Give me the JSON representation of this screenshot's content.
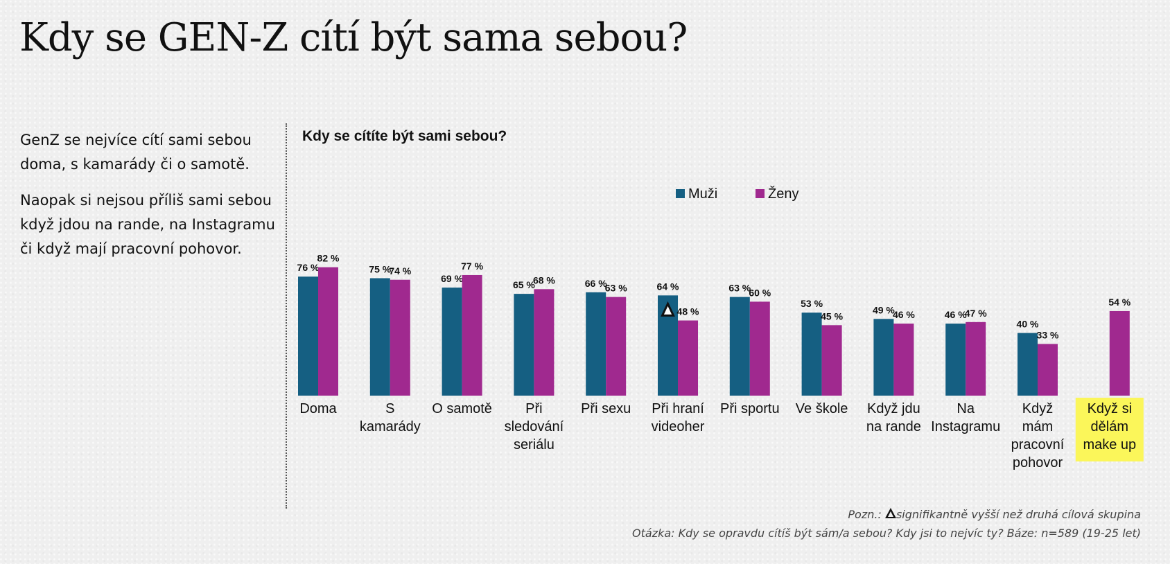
{
  "title": "Kdy se GEN-Z cítí být sama sebou?",
  "left_text": {
    "p1": "GenZ se nejvíce cítí sami sebou doma, s kamarády či o samotě.",
    "p2": "Naopak si nejsou příliš sami sebou když jdou na rande, na Instagramu či když mají pracovní pohovor."
  },
  "notes": {
    "pozn_prefix": "Pozn.:",
    "pozn_text": "signifikantně vyšší než druhá cílová skupina",
    "question": "Otázka: Kdy se opravdu cítíš být sám/a sebou? Kdy jsi to nejvíc ty? Báze: n=589 (19-25 let)"
  },
  "chart_data": {
    "type": "bar",
    "title": "Kdy se cítíte být sami sebou?",
    "legend_position": "top",
    "grid": false,
    "ylim": [
      0,
      100
    ],
    "categories": [
      [
        "Doma"
      ],
      [
        "S",
        "kamarády"
      ],
      [
        "O samotě"
      ],
      [
        "Při",
        "sledování",
        "seriálu"
      ],
      [
        "Při sexu"
      ],
      [
        "Při hraní",
        "videoher"
      ],
      [
        "Při sportu"
      ],
      [
        "Ve škole"
      ],
      [
        "Když jdu",
        "na rande"
      ],
      [
        "Na",
        "Instagramu"
      ],
      [
        "Když",
        "mám",
        "pracovní",
        "pohovor"
      ],
      [
        "Když si",
        "dělám",
        "make up"
      ]
    ],
    "series": [
      {
        "name": "Muži",
        "color": "#155f82",
        "values": [
          76,
          75,
          69,
          65,
          66,
          64,
          63,
          53,
          49,
          46,
          40,
          null
        ],
        "labels": [
          "76 %",
          "75 %",
          "69 %",
          "65 %",
          "66 %",
          "64 %",
          "63 %",
          "53 %",
          "49 %",
          "46 %",
          "40 %",
          ""
        ]
      },
      {
        "name": "Ženy",
        "color": "#a0298f",
        "values": [
          82,
          74,
          77,
          68,
          63,
          48,
          60,
          45,
          46,
          47,
          33,
          54
        ],
        "labels": [
          "82 %",
          "74 %",
          "77 %",
          "68 %",
          "63 %",
          "48 %",
          "60 %",
          "45 %",
          "46 %",
          "47 %",
          "33 %",
          "54 %"
        ]
      }
    ],
    "significant": [
      {
        "series": 0,
        "category": 5
      }
    ],
    "highlight_category": 11,
    "highlight_color": "#fbf65a"
  }
}
